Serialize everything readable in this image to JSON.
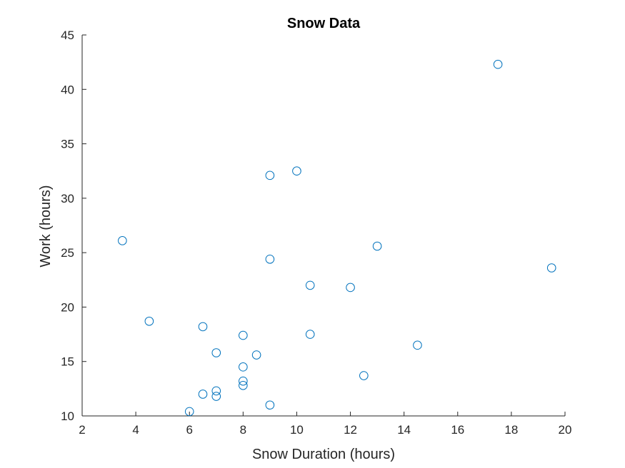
{
  "chart_data": {
    "type": "scatter",
    "title": "Snow Data",
    "xlabel": "Snow Duration (hours)",
    "ylabel": "Work (hours)",
    "xlim": [
      2,
      20
    ],
    "ylim": [
      10,
      45
    ],
    "xticks": [
      2,
      4,
      6,
      8,
      10,
      12,
      14,
      16,
      18,
      20
    ],
    "yticks": [
      10,
      15,
      20,
      25,
      30,
      35,
      40,
      45
    ],
    "grid": false,
    "legend": "none",
    "marker": "circle-open",
    "marker_color": "#0072BD",
    "axis_color": "#262626",
    "points": [
      {
        "x": 3.5,
        "y": 26.1
      },
      {
        "x": 4.5,
        "y": 18.7
      },
      {
        "x": 6.0,
        "y": 10.4
      },
      {
        "x": 6.5,
        "y": 18.2
      },
      {
        "x": 6.5,
        "y": 12.0
      },
      {
        "x": 7.0,
        "y": 15.8
      },
      {
        "x": 7.0,
        "y": 12.3
      },
      {
        "x": 7.0,
        "y": 11.8
      },
      {
        "x": 8.0,
        "y": 17.4
      },
      {
        "x": 8.0,
        "y": 14.5
      },
      {
        "x": 8.0,
        "y": 13.2
      },
      {
        "x": 8.0,
        "y": 12.8
      },
      {
        "x": 8.5,
        "y": 15.6
      },
      {
        "x": 9.0,
        "y": 32.1
      },
      {
        "x": 9.0,
        "y": 24.4
      },
      {
        "x": 9.0,
        "y": 11.0
      },
      {
        "x": 10.0,
        "y": 32.5
      },
      {
        "x": 10.5,
        "y": 22.0
      },
      {
        "x": 10.5,
        "y": 17.5
      },
      {
        "x": 12.0,
        "y": 21.8
      },
      {
        "x": 12.5,
        "y": 13.7
      },
      {
        "x": 13.0,
        "y": 25.6
      },
      {
        "x": 14.5,
        "y": 16.5
      },
      {
        "x": 17.5,
        "y": 42.3
      },
      {
        "x": 19.5,
        "y": 23.6
      }
    ]
  }
}
